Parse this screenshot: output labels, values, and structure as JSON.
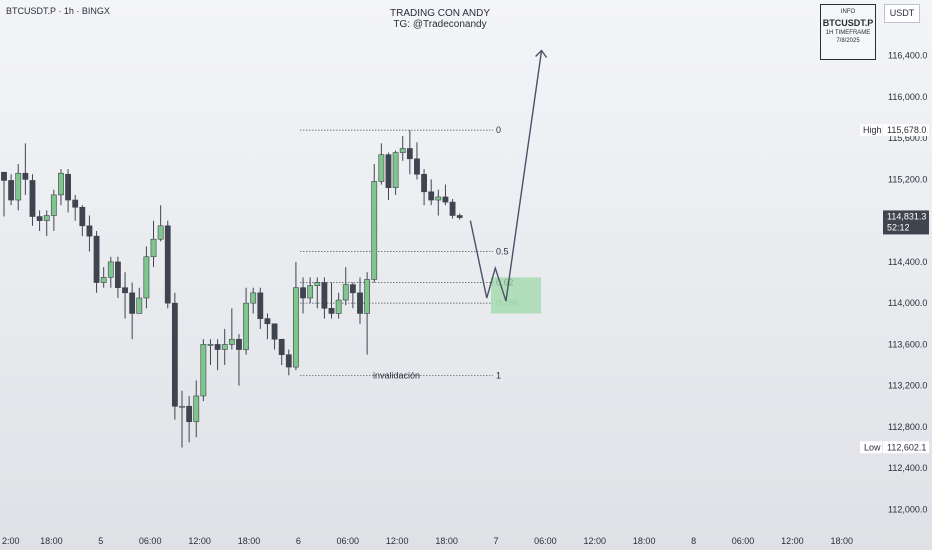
{
  "header": {
    "symbol_line": "BTCUSDT.P · 1h · BINGX",
    "title_line1": "TRADING CON ANDY",
    "title_line2": "TG: @Tradeconandy"
  },
  "info_box": {
    "label": "INFO",
    "symbol": "BTCUSDT.P",
    "timeframe": "1H TIMEFRAME",
    "date": "7/8/2025"
  },
  "currency_button": "USDT",
  "price_tags": {
    "high_label": "High",
    "high_value": "115,678.0",
    "current_value": "114,831.3",
    "countdown": "52:12",
    "low_label": "Low",
    "low_value": "112,602.1"
  },
  "fib_labels": [
    "0",
    "0.5",
    "0.62",
    "0.786",
    "invalidación",
    "1"
  ],
  "colors": {
    "up": "#7ec68c",
    "down": "#3f444f",
    "zone": "#9ed9a8",
    "projection": "#4a5266"
  },
  "chart_data": {
    "type": "candlestick",
    "timeframe": "1h",
    "y_axis": {
      "ticks": [
        112000,
        112400,
        112800,
        113200,
        113600,
        114000,
        114400,
        114800,
        115200,
        115600,
        116000,
        116400
      ],
      "tick_labels": [
        "112,000.0",
        "112,400.0",
        "112,800.0",
        "113,200.0",
        "113,600.0",
        "114,000.0",
        "114,400.0",
        "114,800.0",
        "115,200.0",
        "115,600.0",
        "116,000.0",
        "116,400.0"
      ],
      "ylim": [
        111900,
        116950
      ]
    },
    "x_axis": {
      "tick_labels": [
        "2:00",
        "18:00",
        "5",
        "06:00",
        "12:00",
        "18:00",
        "6",
        "06:00",
        "12:00",
        "18:00",
        "7",
        "06:00",
        "12:00",
        "18:00",
        "8",
        "06:00",
        "12:00",
        "18:00"
      ]
    },
    "candles": [
      [
        115270,
        115190,
        115250,
        114840
      ],
      [
        115190,
        115000,
        115250,
        114950
      ],
      [
        115000,
        115260,
        115350,
        114900
      ],
      [
        115260,
        115200,
        115550,
        115050
      ],
      [
        115190,
        114840,
        115250,
        114750
      ],
      [
        114840,
        114800,
        114900,
        114700
      ],
      [
        114800,
        114850,
        114900,
        114650
      ],
      [
        114850,
        115050,
        115100,
        114700
      ],
      [
        115050,
        115260,
        115300,
        114950
      ],
      [
        115250,
        115000,
        115300,
        114880
      ],
      [
        115000,
        114930,
        115050,
        114800
      ],
      [
        114930,
        114750,
        114950,
        114650
      ],
      [
        114750,
        114650,
        114850,
        114500
      ],
      [
        114650,
        114200,
        114700,
        114100
      ],
      [
        114200,
        114250,
        114350,
        114150
      ],
      [
        114250,
        114400,
        114450,
        114150
      ],
      [
        114400,
        114150,
        114450,
        114050
      ],
      [
        114150,
        114100,
        114300,
        113850
      ],
      [
        114100,
        113900,
        114200,
        113650
      ],
      [
        113900,
        114050,
        114150,
        113900
      ],
      [
        114050,
        114450,
        114550,
        113950
      ],
      [
        114450,
        114620,
        114800,
        114350
      ],
      [
        114620,
        114750,
        114950,
        114600
      ],
      [
        114750,
        114000,
        114800,
        113950
      ],
      [
        114000,
        113000,
        114100,
        112870
      ],
      [
        113000,
        113000,
        113150,
        112600
      ],
      [
        113000,
        112850,
        113100,
        112650
      ],
      [
        112850,
        113100,
        113250,
        112700
      ],
      [
        113100,
        113600,
        113650,
        113050
      ],
      [
        113600,
        113600,
        113650,
        113400
      ],
      [
        113600,
        113550,
        113650,
        113350
      ],
      [
        113550,
        113600,
        113750,
        113400
      ],
      [
        113600,
        113650,
        113950,
        113550
      ],
      [
        113650,
        113550,
        113700,
        113200
      ],
      [
        113550,
        114000,
        114150,
        113500
      ],
      [
        114000,
        114100,
        114150,
        113900
      ],
      [
        114100,
        113850,
        114150,
        113750
      ],
      [
        113850,
        113800,
        113900,
        113650
      ],
      [
        113800,
        113650,
        113800,
        113550
      ],
      [
        113650,
        113500,
        113650,
        113400
      ],
      [
        113500,
        113380,
        113550,
        113300
      ],
      [
        113380,
        114150,
        114400,
        113350
      ],
      [
        114150,
        114050,
        114250,
        113900
      ],
      [
        114050,
        114170,
        114250,
        114000
      ],
      [
        114170,
        114200,
        114250,
        113950
      ],
      [
        114200,
        113950,
        114250,
        113850
      ],
      [
        113950,
        113900,
        114200,
        113850
      ],
      [
        113900,
        114030,
        114100,
        113850
      ],
      [
        114030,
        114180,
        114350,
        113980
      ],
      [
        114180,
        114100,
        114200,
        113950
      ],
      [
        114100,
        113900,
        114250,
        113800
      ],
      [
        113900,
        114230,
        114300,
        113500
      ],
      [
        114230,
        115180,
        115350,
        114200
      ],
      [
        115180,
        115440,
        115550,
        115150
      ],
      [
        115440,
        115120,
        115460,
        115000
      ],
      [
        115120,
        115460,
        115480,
        115050
      ],
      [
        115460,
        115500,
        115620,
        115380
      ],
      [
        115500,
        115400,
        115678,
        115250
      ],
      [
        115400,
        115250,
        115560,
        115200
      ],
      [
        115250,
        115080,
        115300,
        114950
      ],
      [
        115080,
        115000,
        115200,
        114950
      ],
      [
        115000,
        115030,
        115100,
        114850
      ],
      [
        115030,
        114980,
        115150,
        114950
      ],
      [
        114980,
        114850,
        115010,
        114820
      ],
      [
        114850,
        114830,
        114870,
        114810
      ]
    ],
    "levels": [
      {
        "label": "0",
        "value": 115678
      },
      {
        "label": "0.5",
        "value": 114500
      },
      {
        "label": "0.62",
        "value": 114200
      },
      {
        "label": "0.786",
        "value": 114000
      },
      {
        "label": "1",
        "value": 113300
      }
    ],
    "demand_zone": {
      "low": 113900,
      "high": 114250
    },
    "projection_path": [
      {
        "candle": 65.5,
        "price": 114800
      },
      {
        "candle": 67.8,
        "price": 114050
      },
      {
        "candle": 69.0,
        "price": 114340
      },
      {
        "candle": 70.5,
        "price": 114020
      },
      {
        "candle": 75.5,
        "price": 116450
      }
    ]
  }
}
